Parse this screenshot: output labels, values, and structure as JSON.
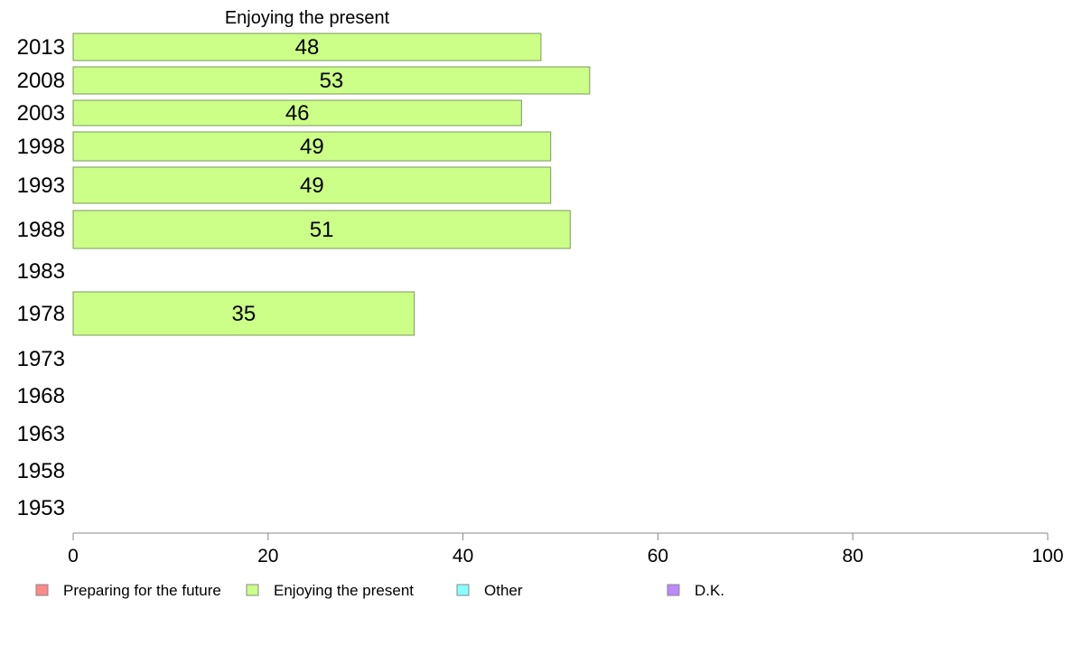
{
  "chart_data": {
    "type": "bar",
    "orientation": "horizontal",
    "title": "Enjoying the present",
    "categories": [
      "2013",
      "2008",
      "2003",
      "1998",
      "1993",
      "1988",
      "1983",
      "1978",
      "1973",
      "1968",
      "1963",
      "1958",
      "1953"
    ],
    "series": [
      {
        "name": "Enjoying the present",
        "color": "#ccff88",
        "values": [
          48,
          53,
          46,
          49,
          49,
          51,
          null,
          35,
          null,
          null,
          null,
          null,
          null
        ]
      }
    ],
    "data_labels": [
      "48",
      "53",
      "46",
      "49",
      "49",
      "51",
      "",
      "35",
      "",
      "",
      "",
      "",
      ""
    ],
    "xlim": [
      0,
      100
    ],
    "x_ticks": [
      "0",
      "20",
      "40",
      "60",
      "80",
      "100"
    ],
    "grid": false,
    "legend_position": "bottom",
    "legend": [
      {
        "label": "Preparing for the future",
        "color": "#ff8888"
      },
      {
        "label": "Enjoying the present",
        "color": "#ccff88"
      },
      {
        "label": "Other",
        "color": "#88ffff"
      },
      {
        "label": "D.K.",
        "color": "#bb88ff"
      }
    ]
  }
}
